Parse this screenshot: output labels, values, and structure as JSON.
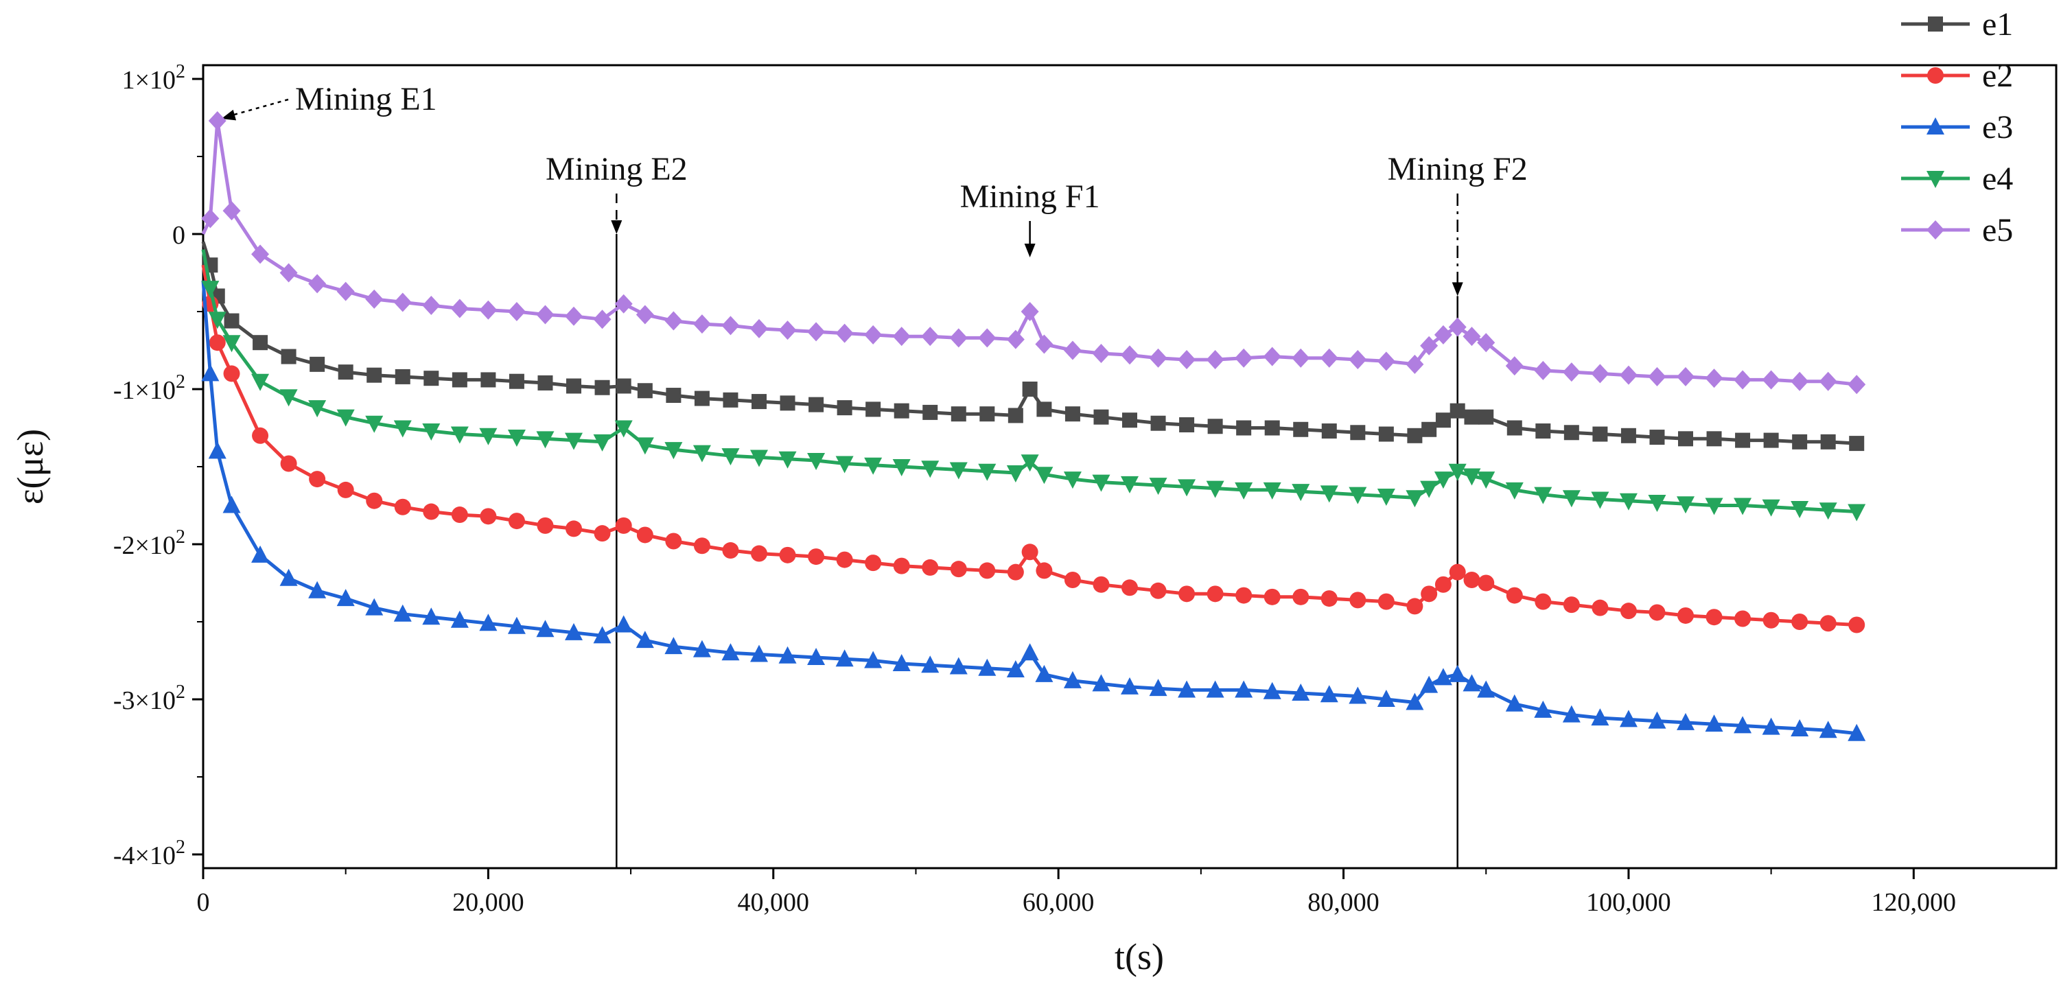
{
  "chart_data": {
    "type": "line",
    "title": "",
    "xlabel": "t(s)",
    "ylabel": "ε(με)",
    "xlim": [
      0,
      130000
    ],
    "ylim": [
      -400,
      100
    ],
    "grid": false,
    "legend_position": "top-right",
    "x_ticks": [
      {
        "value": 0,
        "label": "0"
      },
      {
        "value": 20000,
        "label": "20,000"
      },
      {
        "value": 40000,
        "label": "40,000"
      },
      {
        "value": 60000,
        "label": "60,000"
      },
      {
        "value": 80000,
        "label": "80,000"
      },
      {
        "value": 100000,
        "label": "100,000"
      },
      {
        "value": 120000,
        "label": "120,000"
      }
    ],
    "y_ticks": [
      {
        "value": 100,
        "label": "1×10",
        "exp": "2"
      },
      {
        "value": 0,
        "label": "0",
        "exp": ""
      },
      {
        "value": -100,
        "label": "-1×10",
        "exp": "2"
      },
      {
        "value": -200,
        "label": "-2×10",
        "exp": "2"
      },
      {
        "value": -300,
        "label": "-3×10",
        "exp": "2"
      },
      {
        "value": -400,
        "label": "-4×10",
        "exp": "2"
      }
    ],
    "x": [
      0,
      500,
      1000,
      2000,
      4000,
      6000,
      8000,
      10000,
      12000,
      14000,
      16000,
      18000,
      20000,
      22000,
      24000,
      26000,
      28000,
      29500,
      31000,
      33000,
      35000,
      37000,
      39000,
      41000,
      43000,
      45000,
      47000,
      49000,
      51000,
      53000,
      55000,
      57000,
      58000,
      59000,
      61000,
      63000,
      65000,
      67000,
      69000,
      71000,
      73000,
      75000,
      77000,
      79000,
      81000,
      83000,
      85000,
      86000,
      87000,
      88000,
      89000,
      90000,
      92000,
      94000,
      96000,
      98000,
      100000,
      102000,
      104000,
      106000,
      108000,
      110000,
      112000,
      114000,
      116000
    ],
    "series": [
      {
        "name": "e1",
        "color": "#4a4a4a",
        "marker": "square",
        "values": [
          -5,
          -20,
          -40,
          -56,
          -70,
          -79,
          -84,
          -89,
          -91,
          -92,
          -93,
          -94,
          -94,
          -95,
          -96,
          -98,
          -99,
          -98,
          -101,
          -104,
          -106,
          -107,
          -108,
          -109,
          -110,
          -112,
          -113,
          -114,
          -115,
          -116,
          -116,
          -117,
          -100,
          -113,
          -116,
          -118,
          -120,
          -122,
          -123,
          -124,
          -125,
          -125,
          -126,
          -127,
          -128,
          -129,
          -130,
          -126,
          -120,
          -114,
          -118,
          -118,
          -125,
          -127,
          -128,
          -129,
          -130,
          -131,
          -132,
          -132,
          -133,
          -133,
          -134,
          -134,
          -135
        ]
      },
      {
        "name": "e2",
        "color": "#ef3b3b",
        "marker": "circle",
        "values": [
          -20,
          -45,
          -70,
          -90,
          -130,
          -148,
          -158,
          -165,
          -172,
          -176,
          -179,
          -181,
          -182,
          -185,
          -188,
          -190,
          -193,
          -188,
          -194,
          -198,
          -201,
          -204,
          -206,
          -207,
          -208,
          -210,
          -212,
          -214,
          -215,
          -216,
          -217,
          -218,
          -205,
          -217,
          -223,
          -226,
          -228,
          -230,
          -232,
          -232,
          -233,
          -234,
          -234,
          -235,
          -236,
          -237,
          -240,
          -232,
          -226,
          -218,
          -223,
          -225,
          -233,
          -237,
          -239,
          -241,
          -243,
          -244,
          -246,
          -247,
          -248,
          -249,
          -250,
          -251,
          -252
        ]
      },
      {
        "name": "e3",
        "color": "#1f63d6",
        "marker": "triangle-up",
        "values": [
          -30,
          -90,
          -140,
          -175,
          -207,
          -222,
          -230,
          -235,
          -241,
          -245,
          -247,
          -249,
          -251,
          -253,
          -255,
          -257,
          -259,
          -252,
          -262,
          -266,
          -268,
          -270,
          -271,
          -272,
          -273,
          -274,
          -275,
          -277,
          -278,
          -279,
          -280,
          -281,
          -270,
          -284,
          -288,
          -290,
          -292,
          -293,
          -294,
          -294,
          -294,
          -295,
          -296,
          -297,
          -298,
          -300,
          -302,
          -291,
          -286,
          -284,
          -290,
          -294,
          -303,
          -307,
          -310,
          -312,
          -313,
          -314,
          -315,
          -316,
          -317,
          -318,
          -319,
          -320,
          -322
        ]
      },
      {
        "name": "e4",
        "color": "#25a55c",
        "marker": "triangle-down",
        "values": [
          -10,
          -35,
          -55,
          -70,
          -95,
          -105,
          -112,
          -118,
          -122,
          -125,
          -127,
          -129,
          -130,
          -131,
          -132,
          -133,
          -134,
          -125,
          -136,
          -139,
          -141,
          -143,
          -144,
          -145,
          -146,
          -148,
          -149,
          -150,
          -151,
          -152,
          -153,
          -154,
          -147,
          -155,
          -158,
          -160,
          -161,
          -162,
          -163,
          -164,
          -165,
          -165,
          -166,
          -167,
          -168,
          -169,
          -170,
          -164,
          -158,
          -153,
          -156,
          -158,
          -165,
          -168,
          -170,
          -171,
          -172,
          -173,
          -174,
          -175,
          -175,
          -176,
          -177,
          -178,
          -179
        ]
      },
      {
        "name": "e5",
        "color": "#b07ee0",
        "marker": "diamond",
        "values": [
          0,
          10,
          73,
          15,
          -13,
          -25,
          -32,
          -37,
          -42,
          -44,
          -46,
          -48,
          -49,
          -50,
          -52,
          -53,
          -55,
          -45,
          -52,
          -56,
          -58,
          -59,
          -61,
          -62,
          -63,
          -64,
          -65,
          -66,
          -66,
          -67,
          -67,
          -68,
          -50,
          -71,
          -75,
          -77,
          -78,
          -80,
          -81,
          -81,
          -80,
          -79,
          -80,
          -80,
          -81,
          -82,
          -84,
          -72,
          -65,
          -60,
          -66,
          -70,
          -85,
          -88,
          -89,
          -90,
          -91,
          -92,
          -92,
          -93,
          -94,
          -94,
          -95,
          -95,
          -97
        ]
      }
    ],
    "annotations": [
      {
        "text": "Mining E1",
        "x": 800,
        "y": 73,
        "style": "dotted-arrow"
      },
      {
        "text": "Mining E2",
        "x": 29000,
        "y": 0,
        "style": "dashed-arrow-vline"
      },
      {
        "text": "Mining F1",
        "x": 58000,
        "y": -22,
        "style": "solid-arrow"
      },
      {
        "text": "Mining F2",
        "x": 88000,
        "y": -40,
        "style": "dashdot-arrow-vline"
      }
    ]
  }
}
